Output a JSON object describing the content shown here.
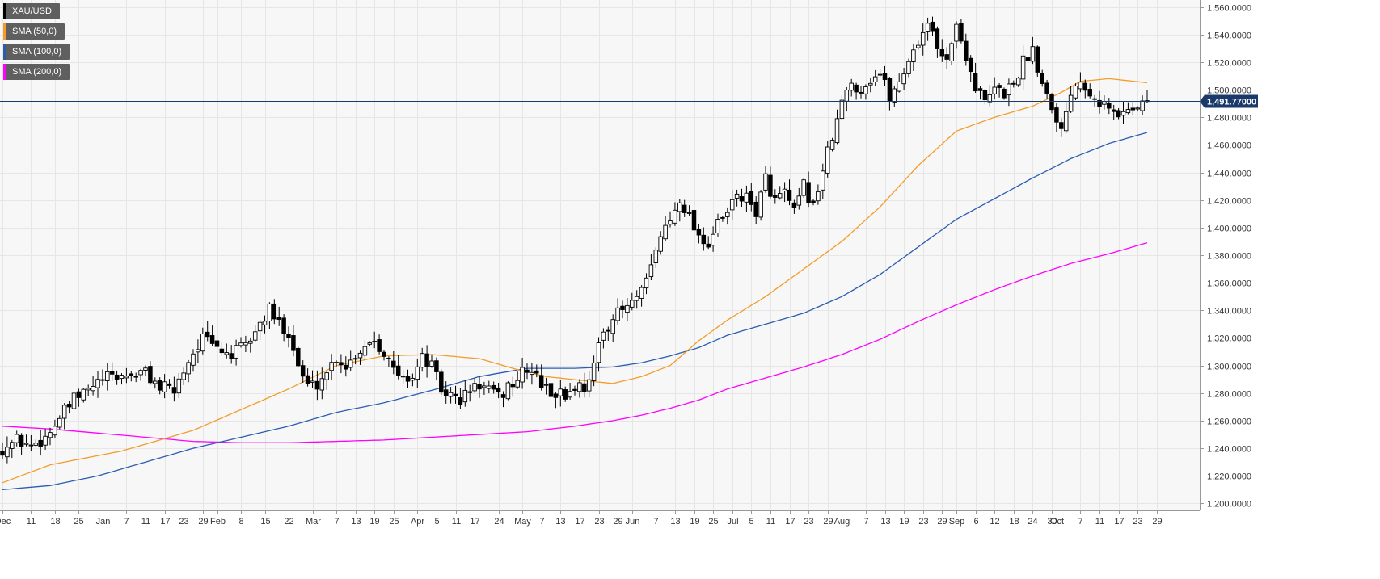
{
  "symbol": "XAU/USD",
  "legend": [
    {
      "label": "XAU/USD",
      "color": "#000000"
    },
    {
      "label": "SMA (50,0)",
      "color": "#f39c29"
    },
    {
      "label": "SMA (100,0)",
      "color": "#2a5db0"
    },
    {
      "label": "SMA (200,0)",
      "color": "#ff00ff"
    }
  ],
  "price_tag": "1,491.77000",
  "colors": {
    "background": "#f7f7f7",
    "grid": "#e6e6e6",
    "bull": "#ffffff",
    "bear": "#000000",
    "sma50": "#f39c29",
    "sma100": "#2a5db0",
    "sma200": "#ff00ff",
    "tag": "#1b3a6b"
  },
  "chart_data": {
    "type": "candlestick",
    "ylim": [
      1195,
      1565
    ],
    "grid": true,
    "y_ticks": [
      "1,200.0000",
      "1,220.0000",
      "1,240.0000",
      "1,260.0000",
      "1,280.0000",
      "1,300.0000",
      "1,320.0000",
      "1,340.0000",
      "1,360.0000",
      "1,380.0000",
      "1,400.0000",
      "1,420.0000",
      "1,440.0000",
      "1,460.0000",
      "1,480.0000",
      "1,500.0000",
      "1,520.0000",
      "1,540.0000",
      "1,560.0000"
    ],
    "y_tick_values": [
      1200,
      1220,
      1240,
      1260,
      1280,
      1300,
      1320,
      1340,
      1360,
      1380,
      1400,
      1420,
      1440,
      1460,
      1480,
      1500,
      1520,
      1540,
      1560
    ],
    "x_ticks": [
      {
        "label": "Dec",
        "bar": 0
      },
      {
        "label": "11",
        "bar": 6
      },
      {
        "label": "18",
        "bar": 11
      },
      {
        "label": "25",
        "bar": 16
      },
      {
        "label": "Jan",
        "bar": 21
      },
      {
        "label": "7",
        "bar": 26
      },
      {
        "label": "11",
        "bar": 30
      },
      {
        "label": "17",
        "bar": 34
      },
      {
        "label": "23",
        "bar": 38
      },
      {
        "label": "29",
        "bar": 42
      },
      {
        "label": "Feb",
        "bar": 45
      },
      {
        "label": "8",
        "bar": 50
      },
      {
        "label": "15",
        "bar": 55
      },
      {
        "label": "22",
        "bar": 60
      },
      {
        "label": "Mar",
        "bar": 65
      },
      {
        "label": "7",
        "bar": 70
      },
      {
        "label": "13",
        "bar": 74
      },
      {
        "label": "19",
        "bar": 78
      },
      {
        "label": "25",
        "bar": 82
      },
      {
        "label": "Apr",
        "bar": 87
      },
      {
        "label": "5",
        "bar": 91
      },
      {
        "label": "11",
        "bar": 95
      },
      {
        "label": "17",
        "bar": 99
      },
      {
        "label": "24",
        "bar": 104
      },
      {
        "label": "May",
        "bar": 109
      },
      {
        "label": "7",
        "bar": 113
      },
      {
        "label": "13",
        "bar": 117
      },
      {
        "label": "17",
        "bar": 121
      },
      {
        "label": "23",
        "bar": 125
      },
      {
        "label": "29",
        "bar": 129
      },
      {
        "label": "Jun",
        "bar": 132
      },
      {
        "label": "7",
        "bar": 137
      },
      {
        "label": "13",
        "bar": 141
      },
      {
        "label": "19",
        "bar": 145
      },
      {
        "label": "25",
        "bar": 149
      },
      {
        "label": "Jul",
        "bar": 153
      },
      {
        "label": "5",
        "bar": 157
      },
      {
        "label": "11",
        "bar": 161
      },
      {
        "label": "17",
        "bar": 165
      },
      {
        "label": "23",
        "bar": 169
      },
      {
        "label": "29",
        "bar": 173
      },
      {
        "label": "Aug",
        "bar": 176
      },
      {
        "label": "7",
        "bar": 181
      },
      {
        "label": "13",
        "bar": 185
      },
      {
        "label": "19",
        "bar": 189
      },
      {
        "label": "23",
        "bar": 193
      },
      {
        "label": "29",
        "bar": 197
      },
      {
        "label": "Sep",
        "bar": 200
      },
      {
        "label": "6",
        "bar": 204
      },
      {
        "label": "12",
        "bar": 208
      },
      {
        "label": "18",
        "bar": 212
      },
      {
        "label": "24",
        "bar": 216
      },
      {
        "label": "30",
        "bar": 220
      },
      {
        "label": "Oct",
        "bar": 221
      },
      {
        "label": "7",
        "bar": 226
      },
      {
        "label": "11",
        "bar": 230
      },
      {
        "label": "17",
        "bar": 234
      },
      {
        "label": "23",
        "bar": 238
      },
      {
        "label": "29",
        "bar": 242
      }
    ],
    "current_price": 1491.77,
    "close_anchors": [
      [
        0,
        1240
      ],
      [
        3,
        1246
      ],
      [
        6,
        1242
      ],
      [
        9,
        1248
      ],
      [
        12,
        1262
      ],
      [
        15,
        1275
      ],
      [
        18,
        1282
      ],
      [
        21,
        1290
      ],
      [
        24,
        1292
      ],
      [
        27,
        1293
      ],
      [
        30,
        1295
      ],
      [
        33,
        1284
      ],
      [
        36,
        1282
      ],
      [
        39,
        1304
      ],
      [
        42,
        1320
      ],
      [
        45,
        1312
      ],
      [
        48,
        1308
      ],
      [
        51,
        1314
      ],
      [
        54,
        1330
      ],
      [
        56,
        1340
      ],
      [
        58,
        1330
      ],
      [
        60,
        1325
      ],
      [
        62,
        1300
      ],
      [
        64,
        1285
      ],
      [
        66,
        1287
      ],
      [
        68,
        1296
      ],
      [
        70,
        1306
      ],
      [
        72,
        1300
      ],
      [
        74,
        1308
      ],
      [
        76,
        1315
      ],
      [
        78,
        1320
      ],
      [
        80,
        1310
      ],
      [
        82,
        1296
      ],
      [
        84,
        1290
      ],
      [
        86,
        1293
      ],
      [
        88,
        1305
      ],
      [
        90,
        1300
      ],
      [
        92,
        1282
      ],
      [
        94,
        1278
      ],
      [
        96,
        1275
      ],
      [
        98,
        1282
      ],
      [
        100,
        1286
      ],
      [
        102,
        1282
      ],
      [
        104,
        1276
      ],
      [
        106,
        1285
      ],
      [
        108,
        1290
      ],
      [
        110,
        1298
      ],
      [
        112,
        1292
      ],
      [
        114,
        1282
      ],
      [
        116,
        1280
      ],
      [
        118,
        1278
      ],
      [
        120,
        1285
      ],
      [
        122,
        1285
      ],
      [
        124,
        1300
      ],
      [
        126,
        1325
      ],
      [
        128,
        1335
      ],
      [
        130,
        1340
      ],
      [
        132,
        1345
      ],
      [
        134,
        1352
      ],
      [
        136,
        1370
      ],
      [
        138,
        1395
      ],
      [
        140,
        1405
      ],
      [
        142,
        1422
      ],
      [
        144,
        1408
      ],
      [
        146,
        1395
      ],
      [
        148,
        1388
      ],
      [
        150,
        1402
      ],
      [
        152,
        1410
      ],
      [
        154,
        1425
      ],
      [
        156,
        1420
      ],
      [
        158,
        1412
      ],
      [
        160,
        1435
      ],
      [
        162,
        1420
      ],
      [
        164,
        1425
      ],
      [
        166,
        1410
      ],
      [
        168,
        1430
      ],
      [
        170,
        1415
      ],
      [
        172,
        1442
      ],
      [
        174,
        1465
      ],
      [
        176,
        1490
      ],
      [
        178,
        1505
      ],
      [
        180,
        1500
      ],
      [
        182,
        1508
      ],
      [
        184,
        1512
      ],
      [
        186,
        1495
      ],
      [
        188,
        1505
      ],
      [
        190,
        1522
      ],
      [
        192,
        1535
      ],
      [
        194,
        1550
      ],
      [
        196,
        1528
      ],
      [
        198,
        1525
      ],
      [
        200,
        1545
      ],
      [
        202,
        1525
      ],
      [
        204,
        1502
      ],
      [
        206,
        1490
      ],
      [
        208,
        1500
      ],
      [
        210,
        1498
      ],
      [
        212,
        1505
      ],
      [
        214,
        1520
      ],
      [
        216,
        1530
      ],
      [
        218,
        1505
      ],
      [
        220,
        1490
      ],
      [
        222,
        1470
      ],
      [
        224,
        1500
      ],
      [
        226,
        1508
      ],
      [
        228,
        1500
      ],
      [
        230,
        1492
      ],
      [
        232,
        1486
      ],
      [
        234,
        1480
      ],
      [
        236,
        1488
      ],
      [
        238,
        1488
      ],
      [
        240,
        1492
      ]
    ],
    "sma50_anchors": [
      [
        0,
        1215
      ],
      [
        10,
        1228
      ],
      [
        25,
        1238
      ],
      [
        40,
        1253
      ],
      [
        50,
        1268
      ],
      [
        60,
        1283
      ],
      [
        70,
        1300
      ],
      [
        80,
        1307
      ],
      [
        90,
        1308
      ],
      [
        100,
        1305
      ],
      [
        108,
        1297
      ],
      [
        114,
        1292
      ],
      [
        122,
        1289
      ],
      [
        128,
        1287
      ],
      [
        134,
        1292
      ],
      [
        140,
        1300
      ],
      [
        146,
        1318
      ],
      [
        152,
        1333
      ],
      [
        160,
        1350
      ],
      [
        168,
        1370
      ],
      [
        176,
        1390
      ],
      [
        184,
        1415
      ],
      [
        192,
        1445
      ],
      [
        200,
        1470
      ],
      [
        208,
        1480
      ],
      [
        216,
        1488
      ],
      [
        222,
        1498
      ],
      [
        226,
        1506
      ],
      [
        232,
        1508
      ],
      [
        240,
        1505
      ]
    ],
    "sma100_anchors": [
      [
        0,
        1210
      ],
      [
        10,
        1213
      ],
      [
        20,
        1220
      ],
      [
        30,
        1230
      ],
      [
        40,
        1240
      ],
      [
        50,
        1248
      ],
      [
        60,
        1256
      ],
      [
        70,
        1266
      ],
      [
        80,
        1273
      ],
      [
        90,
        1282
      ],
      [
        100,
        1292
      ],
      [
        110,
        1298
      ],
      [
        120,
        1298
      ],
      [
        128,
        1299
      ],
      [
        134,
        1302
      ],
      [
        140,
        1307
      ],
      [
        146,
        1313
      ],
      [
        152,
        1322
      ],
      [
        160,
        1330
      ],
      [
        168,
        1338
      ],
      [
        176,
        1350
      ],
      [
        184,
        1366
      ],
      [
        192,
        1386
      ],
      [
        200,
        1406
      ],
      [
        208,
        1421
      ],
      [
        216,
        1436
      ],
      [
        224,
        1450
      ],
      [
        232,
        1461
      ],
      [
        240,
        1469
      ]
    ],
    "sma200_anchors": [
      [
        0,
        1256
      ],
      [
        10,
        1254
      ],
      [
        20,
        1251
      ],
      [
        30,
        1248
      ],
      [
        40,
        1245
      ],
      [
        50,
        1244
      ],
      [
        60,
        1244
      ],
      [
        70,
        1245
      ],
      [
        80,
        1246
      ],
      [
        90,
        1248
      ],
      [
        100,
        1250
      ],
      [
        110,
        1252
      ],
      [
        120,
        1256
      ],
      [
        128,
        1260
      ],
      [
        134,
        1264
      ],
      [
        140,
        1269
      ],
      [
        146,
        1275
      ],
      [
        152,
        1283
      ],
      [
        160,
        1291
      ],
      [
        168,
        1299
      ],
      [
        176,
        1308
      ],
      [
        184,
        1319
      ],
      [
        192,
        1332
      ],
      [
        200,
        1344
      ],
      [
        208,
        1355
      ],
      [
        216,
        1365
      ],
      [
        224,
        1374
      ],
      [
        232,
        1381
      ],
      [
        240,
        1389
      ]
    ],
    "series": [
      {
        "name": "XAU/USD",
        "type": "candlestick"
      },
      {
        "name": "SMA (50,0)",
        "type": "line"
      },
      {
        "name": "SMA (100,0)",
        "type": "line"
      },
      {
        "name": "SMA (200,0)",
        "type": "line"
      }
    ]
  }
}
